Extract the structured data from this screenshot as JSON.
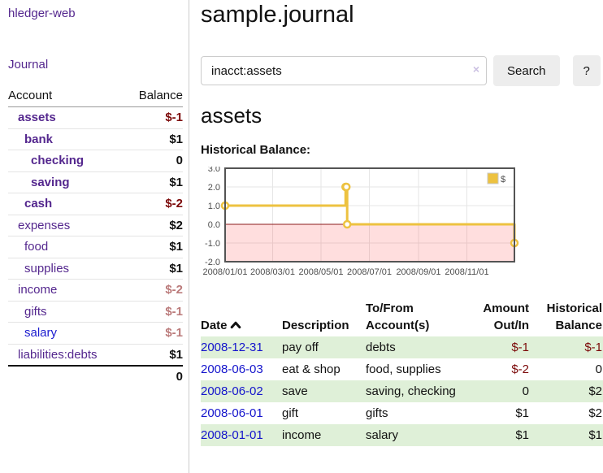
{
  "app": {
    "title": "hledger-web"
  },
  "colors": {
    "link_purple": "#54278e",
    "link_blue": "#1414cc",
    "negative_strong": "#7c0a0a",
    "negative_weak": "#bb7b7b",
    "row_stripe_green": "#dff0d8",
    "series_gold": "#edc240",
    "zero_line_red": "#8b1a1a"
  },
  "sidebar": {
    "nav": {
      "journal_label": "Journal"
    },
    "accounts_table": {
      "headers": {
        "account": "Account",
        "balance": "Balance"
      },
      "rows": [
        {
          "account": "assets",
          "balance": "$-1",
          "depth": 1,
          "bold": true,
          "balance_style": "neg-strong",
          "link": "purple"
        },
        {
          "account": "bank",
          "balance": "$1",
          "depth": 2,
          "bold": true,
          "balance_style": "",
          "link": "purple"
        },
        {
          "account": "checking",
          "balance": "0",
          "depth": 3,
          "bold": true,
          "balance_style": "",
          "link": "purple"
        },
        {
          "account": "saving",
          "balance": "$1",
          "depth": 3,
          "bold": true,
          "balance_style": "",
          "link": "purple"
        },
        {
          "account": "cash",
          "balance": "$-2",
          "depth": 2,
          "bold": true,
          "balance_style": "neg-strong",
          "link": "purple"
        },
        {
          "account": "expenses",
          "balance": "$2",
          "depth": 1,
          "bold": false,
          "balance_style": "",
          "link": "purple"
        },
        {
          "account": "food",
          "balance": "$1",
          "depth": 2,
          "bold": false,
          "balance_style": "",
          "link": "purple"
        },
        {
          "account": "supplies",
          "balance": "$1",
          "depth": 2,
          "bold": false,
          "balance_style": "",
          "link": "purple"
        },
        {
          "account": "income",
          "balance": "$-2",
          "depth": 1,
          "bold": false,
          "balance_style": "neg-weak",
          "link": "purple"
        },
        {
          "account": "gifts",
          "balance": "$-1",
          "depth": 2,
          "bold": false,
          "balance_style": "neg-weak",
          "link": "purple"
        },
        {
          "account": "salary",
          "balance": "$-1",
          "depth": 2,
          "bold": false,
          "balance_style": "neg-weak",
          "link": "blue"
        },
        {
          "account": "liabilities:debts",
          "balance": "$1",
          "depth": 1,
          "bold": false,
          "balance_style": "",
          "link": "purple"
        }
      ],
      "total": "0"
    }
  },
  "main": {
    "title": "sample.journal",
    "search": {
      "value": "inacct:assets",
      "clear_icon": "×",
      "button_label": "Search",
      "help_label": "?"
    },
    "account_heading": "assets",
    "chart_label": "Historical Balance:"
  },
  "chart_data": {
    "type": "line",
    "step": true,
    "title": "Historical Balance",
    "series": [
      {
        "name": "$",
        "color": "#edc240",
        "points": [
          [
            "2008-01-01",
            1
          ],
          [
            "2008-06-01",
            2
          ],
          [
            "2008-06-02",
            2
          ],
          [
            "2008-06-03",
            0
          ],
          [
            "2008-12-31",
            -1
          ]
        ]
      }
    ],
    "xrange": [
      "2008-01-01",
      "2008-12-31"
    ],
    "ylim": [
      -2,
      3
    ],
    "y_ticks": [
      3.0,
      2.0,
      1.0,
      0.0,
      -1.0,
      -2.0
    ],
    "x_ticks": [
      "2008/01/01",
      "2008/03/01",
      "2008/05/01",
      "2008/07/01",
      "2008/09/01",
      "2008/11/01"
    ],
    "grid": true,
    "negative_region": {
      "from": 0,
      "fill": "rgba(255,0,0,0.13)",
      "zero_line": "#8b1a1a"
    },
    "legend": {
      "position": "top-right",
      "label": "$"
    }
  },
  "register": {
    "sort": {
      "column": "Date",
      "direction": "ascending"
    },
    "headers": [
      {
        "label": "Date",
        "align": "left",
        "sortable": true,
        "sorted": true
      },
      {
        "label": "Description",
        "align": "left",
        "sortable": false
      },
      {
        "label": "To/From Account(s)",
        "align": "left",
        "sortable": false
      },
      {
        "label": "Amount Out/In",
        "align": "right",
        "sortable": false
      },
      {
        "label": "Historical Balance",
        "align": "right",
        "sortable": false
      }
    ],
    "rows": [
      {
        "date": "2008-12-31",
        "description": "pay off",
        "accounts": "debts",
        "amount": "$-1",
        "balance": "$-1"
      },
      {
        "date": "2008-06-03",
        "description": "eat & shop",
        "accounts": "food, supplies",
        "amount": "$-2",
        "balance": "0"
      },
      {
        "date": "2008-06-02",
        "description": "save",
        "accounts": "saving, checking",
        "amount": "0",
        "balance": "$2"
      },
      {
        "date": "2008-06-01",
        "description": "gift",
        "accounts": "gifts",
        "amount": "$1",
        "balance": "$2"
      },
      {
        "date": "2008-01-01",
        "description": "income",
        "accounts": "salary",
        "amount": "$1",
        "balance": "$1"
      }
    ]
  }
}
